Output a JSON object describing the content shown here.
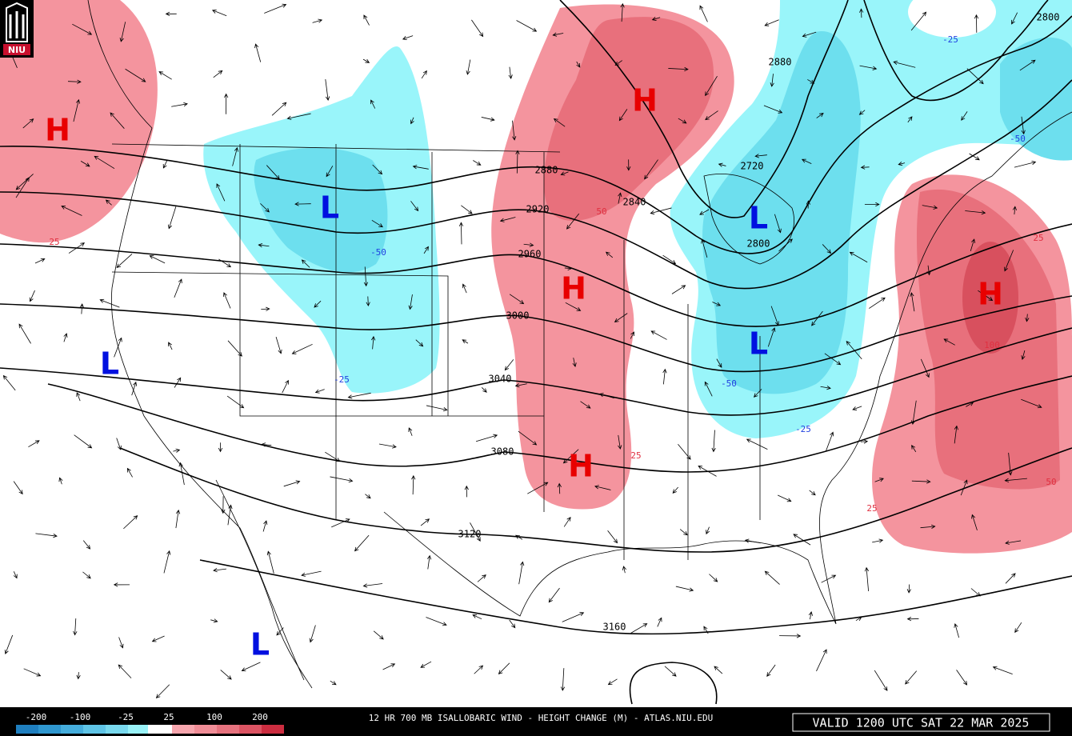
{
  "logo": "NIU",
  "title": "12 HR 700 MB ISALLOBARIC WIND - HEIGHT CHANGE (M) - ATLAS.NIU.EDU",
  "valid_time": "VALID 1200 UTC SAT 22 MAR 2025",
  "pressure_centers": [
    "H",
    "H",
    "L",
    "L",
    "H",
    "L",
    "H",
    "L",
    "H",
    "L"
  ],
  "contour_labels": [
    "2880",
    "2800",
    "2720",
    "2880",
    "2840",
    "2920",
    "2960",
    "2800",
    "3000",
    "3040",
    "3080",
    "3120",
    "3160"
  ],
  "change_labels": [
    "-25",
    "-50",
    "-25",
    "-50",
    "50",
    "-50",
    "-25",
    "25",
    "25",
    "25",
    "100",
    "50",
    "25"
  ],
  "legend": {
    "labels": [
      "-200",
      "-100",
      "-25",
      "25",
      "100",
      "200"
    ]
  }
}
